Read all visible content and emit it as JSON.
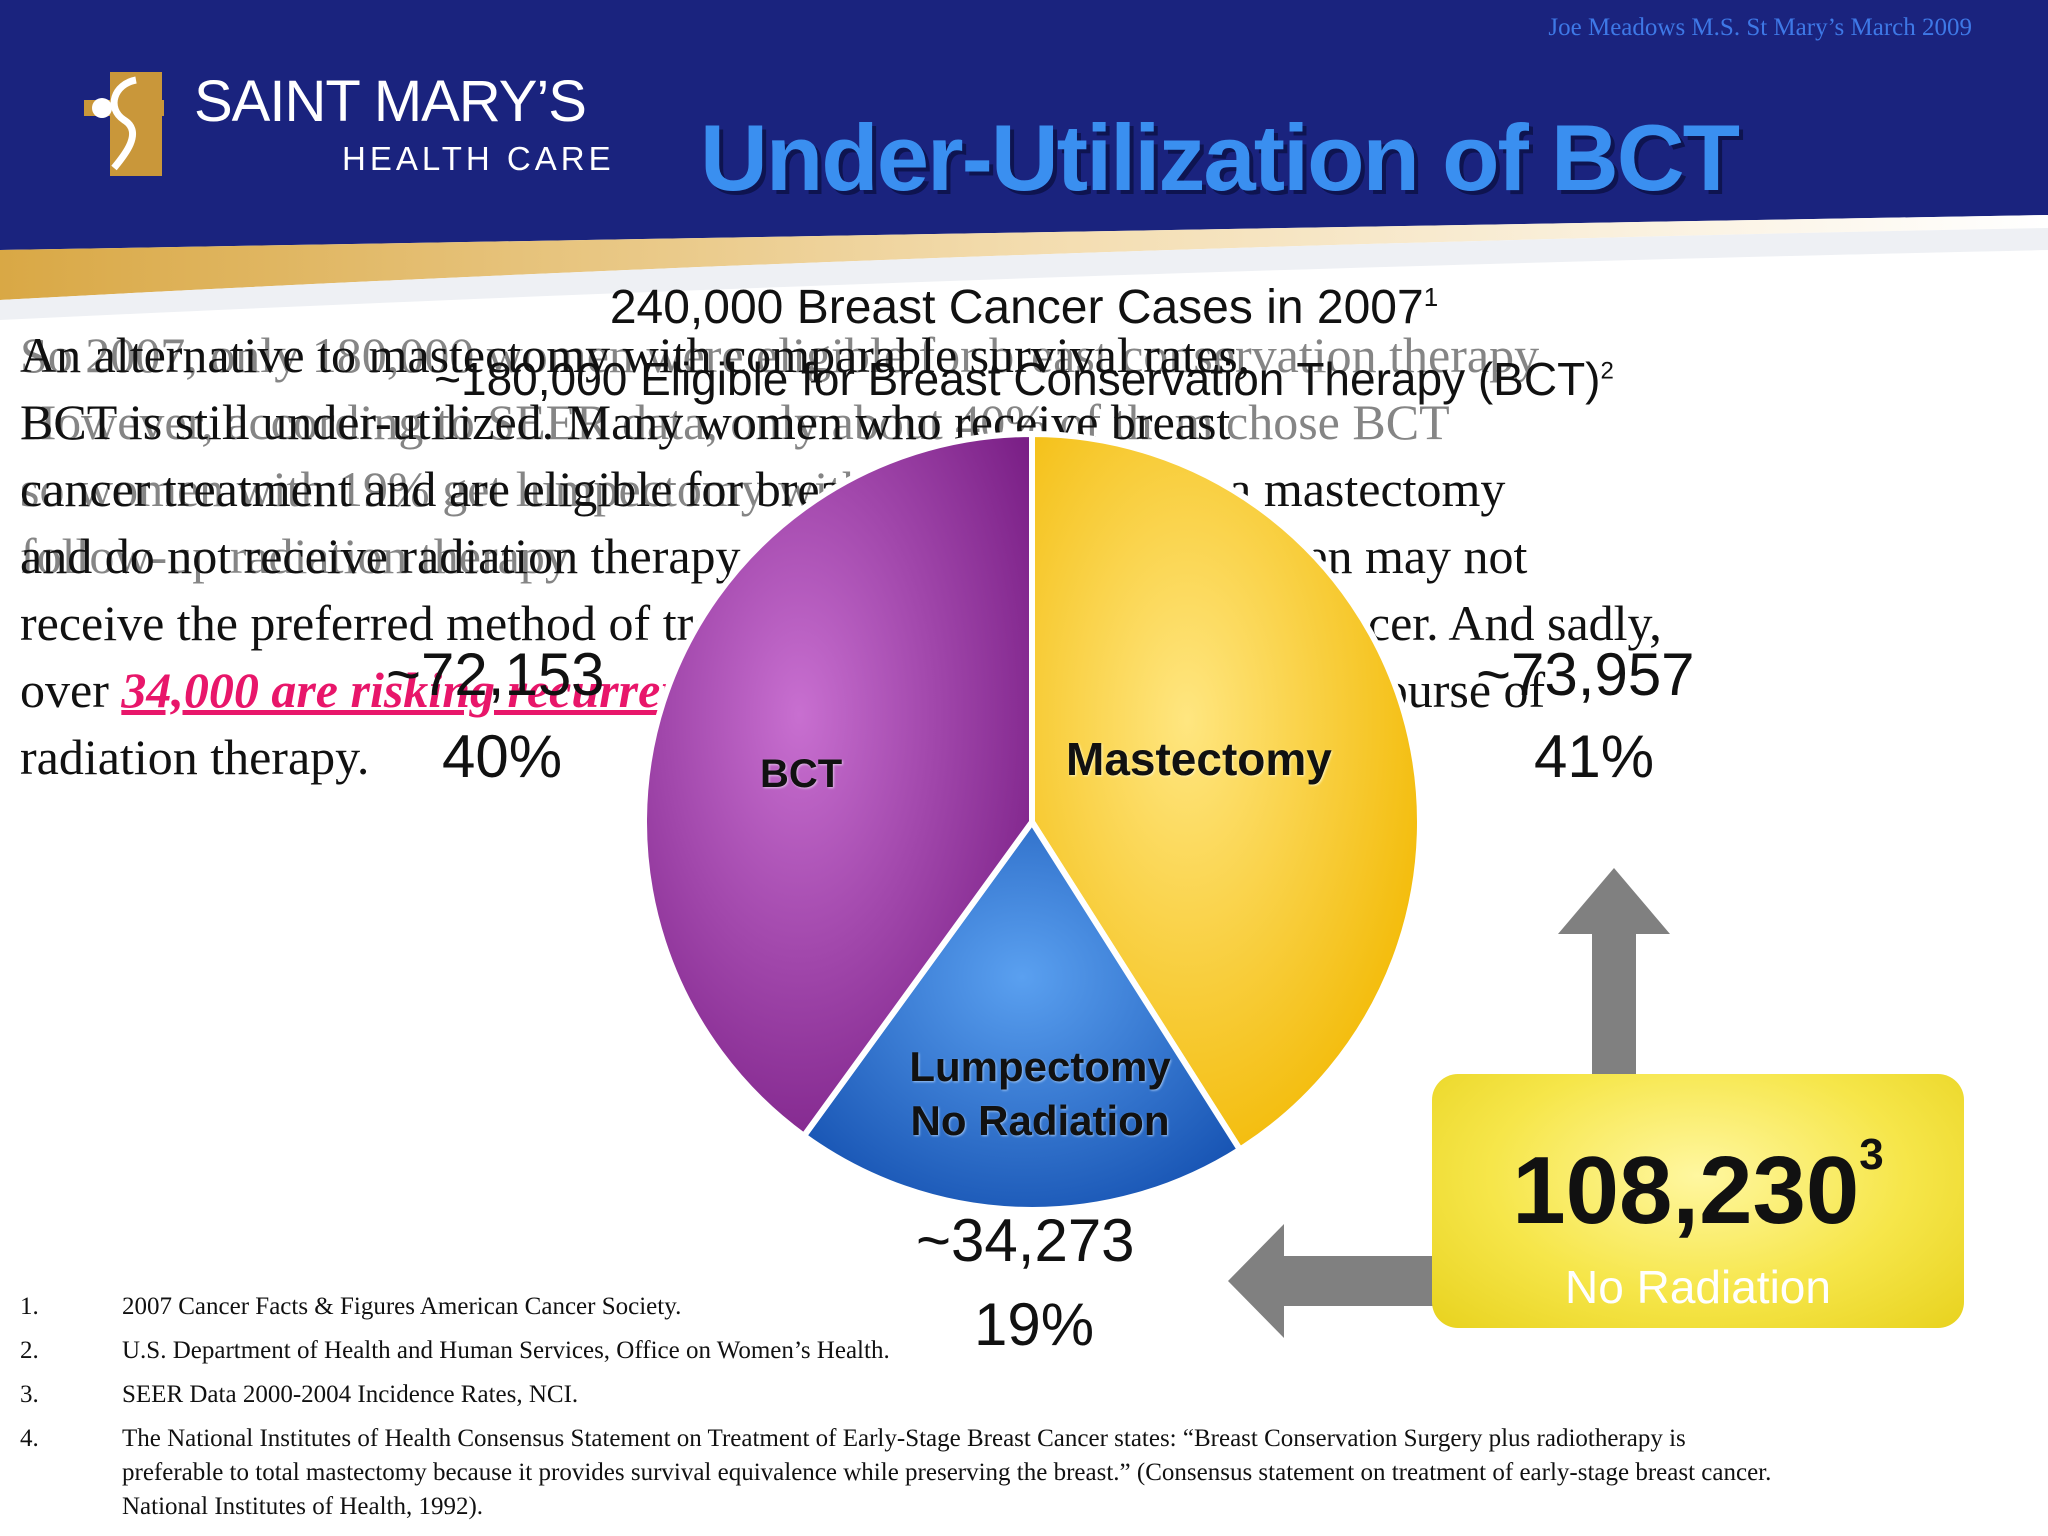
{
  "header": {
    "credit": "Joe Meadows M.S. St Mary’s March 2009",
    "logo_name": "SAINT MARY’S",
    "logo_sub": "HEALTH CARE",
    "title": "Under-Utilization of BCT"
  },
  "body": {
    "line1": "An alternative to mastectomy with comparable survival rates,",
    "line2_left": "BCT is still under-utilized. Many women who receive breast",
    "line3": "cancer treatment and are eligible for breast conservation get a mastectomy",
    "line4": "and do not receive radiation therapy. In 2007 over 108,000 women may not",
    "line5": "receive the preferred method of treatment for early-stage breast cancer. And sadly,",
    "line6_before": "over",
    "line6_link": "34,000 are risking recurrence",
    "line6_after": "by forgoing the recommended course of",
    "line7": "radiation therapy."
  },
  "overlay": {
    "a": "So 2007, only 180,000 women were eligible for breast conservation therapy",
    "b": "However, according to SEER data, only about 40% of them chose BCT",
    "c": "so women with 19% get lumpectomy without radiation",
    "d": "follow-up radiation therapy"
  },
  "chart_data": {
    "type": "pie",
    "title": "240,000 Breast Cancer Cases in 2007",
    "title_sup": "1",
    "subtitle": "~180,000 Eligible for Breast Conservation Therapy (BCT)",
    "subtitle_sup": "2",
    "slices": [
      {
        "name": "Mastectomy",
        "value": 73957,
        "percent": 41,
        "value_label": "~73,957",
        "percent_label": "41%",
        "color": "#f5c518"
      },
      {
        "name": "Lumpectomy No Radiation",
        "value": 34273,
        "percent": 19,
        "value_label": "~34,273",
        "percent_label": "19%",
        "color": "#1e6fd0"
      },
      {
        "name": "BCT",
        "value": 72153,
        "percent": 40,
        "value_label": "~72,153",
        "percent_label": "40%",
        "color": "#a63aa8"
      }
    ],
    "callout": {
      "value": "108,230",
      "sup": "3",
      "label": "No Radiation"
    }
  },
  "footnotes": [
    {
      "num": "1.",
      "text": "2007 Cancer Facts & Figures American Cancer Society."
    },
    {
      "num": "2.",
      "text": "U.S. Department of Health and Human Services, Office on Women’s Health."
    },
    {
      "num": "3.",
      "text": "SEER Data 2000-2004 Incidence Rates, NCI."
    },
    {
      "num": "4.",
      "text": "The National Institutes of Health Consensus Statement on Treatment of Early-Stage Breast Cancer states: “Breast Conservation Surgery plus radiotherapy is preferable to total mastectomy because it provides survival equivalence while preserving the breast.” (Consensus statement on treatment of early-stage breast cancer. National Institutes of Health, 1992)."
    }
  ],
  "colors": {
    "banner": "#1a237e",
    "title": "#3a8ff0",
    "link": "#e8166a",
    "arrow": "#808080"
  }
}
